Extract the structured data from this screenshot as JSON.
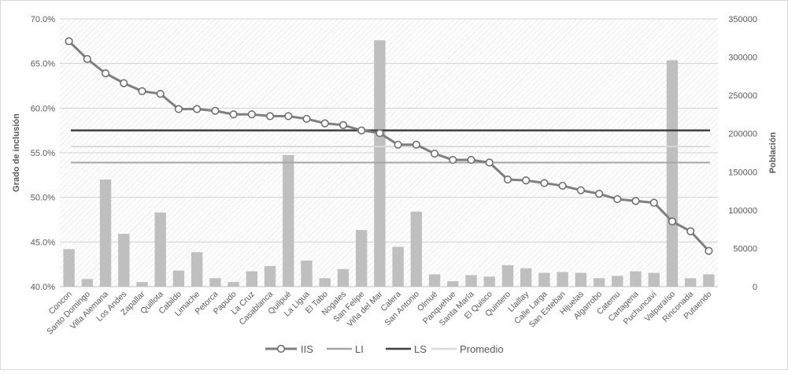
{
  "chart_data": {
    "type": "bar+line",
    "categories": [
      "Concon",
      "Santo Domingo",
      "Villa Alemana",
      "Los Andes",
      "Zapallar",
      "Quillota",
      "Cabildo",
      "Limache",
      "Petorca",
      "Papudo",
      "La Cruz",
      "Casablanca",
      "Quilpué",
      "La Ligua",
      "El Tabo",
      "Nogales",
      "San Felipe",
      "Viña del Mar",
      "Calera",
      "San Antonio",
      "Olmué",
      "Panquehue",
      "Santa María",
      "El Quisco",
      "Quintero",
      "Llaillay",
      "Calle Larga",
      "San Esteban",
      "Hijuelas",
      "Algarrobo",
      "Catemu",
      "Cartagena",
      "Puchuncaví",
      "Valparaíso",
      "Rinconada",
      "Putaendo"
    ],
    "series": [
      {
        "name": "IIS",
        "kind": "line",
        "axis": "left",
        "color": "#7f7f7f",
        "values": [
          67.5,
          65.5,
          63.9,
          62.8,
          61.9,
          61.6,
          59.9,
          59.9,
          59.7,
          59.3,
          59.3,
          59.1,
          59.1,
          58.8,
          58.3,
          58.1,
          57.5,
          57.2,
          55.9,
          55.9,
          54.9,
          54.2,
          54.2,
          53.9,
          52.0,
          51.9,
          51.6,
          51.3,
          50.8,
          50.4,
          49.8,
          49.6,
          49.4,
          47.3,
          46.2,
          44.0
        ]
      },
      {
        "name": "LI",
        "kind": "hline",
        "axis": "left",
        "color": "#a6a6a6",
        "value": 53.9
      },
      {
        "name": "LS",
        "kind": "hline",
        "axis": "left",
        "color": "#404040",
        "value": 57.5
      },
      {
        "name": "Promedio",
        "kind": "hline",
        "axis": "left",
        "color": "#d9d9d9",
        "value": 55.7
      },
      {
        "name": "Población",
        "kind": "bar",
        "axis": "right",
        "color": "#bfbfbf",
        "values": [
          49000,
          10000,
          140000,
          69000,
          6000,
          97000,
          21000,
          45000,
          11000,
          6000,
          20000,
          27000,
          172000,
          34000,
          11000,
          23000,
          74000,
          322000,
          52000,
          98000,
          16000,
          7000,
          15000,
          13000,
          28000,
          24000,
          18000,
          19000,
          18000,
          11000,
          14000,
          20000,
          18000,
          296000,
          11000,
          16000
        ]
      }
    ],
    "y_left": {
      "label": "Grado de inclusión",
      "min": 40,
      "max": 70,
      "ticks": [
        "40.0%",
        "45.0%",
        "50.0%",
        "55.0%",
        "60.0%",
        "65.0%",
        "70.0%"
      ]
    },
    "y_right": {
      "label": "Población",
      "min": 0,
      "max": 350000,
      "ticks": [
        "0",
        "50000",
        "100000",
        "150000",
        "200000",
        "250000",
        "300000",
        "350000"
      ]
    },
    "legend": {
      "placement": "bottom",
      "entries": [
        "IIS",
        "LI",
        "LS",
        "Promedio"
      ]
    },
    "grid": true
  }
}
